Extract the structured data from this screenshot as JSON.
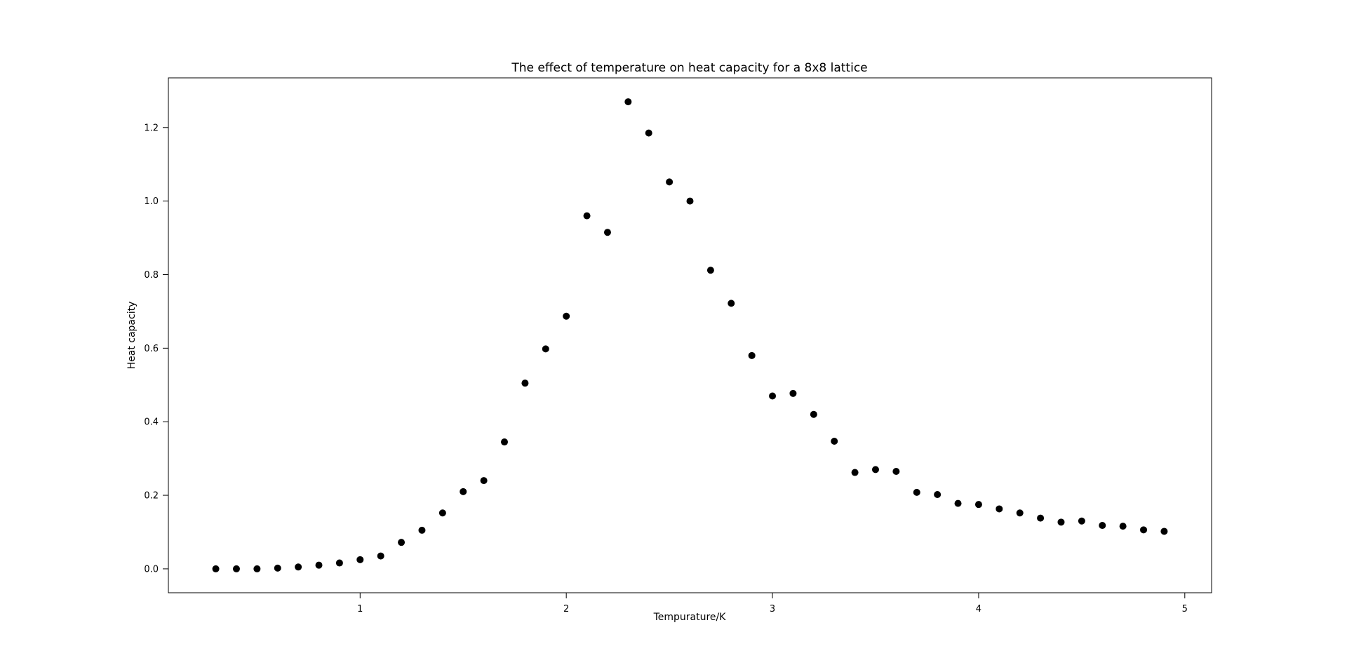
{
  "chart_data": {
    "type": "scatter",
    "title": "The effect of temperature on heat capacity for a 8x8 lattice",
    "xlabel": "Tempurature/K",
    "ylabel": "Heat capacity",
    "x": [
      0.3,
      0.4,
      0.5,
      0.6,
      0.7,
      0.8,
      0.9,
      1.0,
      1.1,
      1.2,
      1.3,
      1.4,
      1.5,
      1.6,
      1.7,
      1.8,
      1.9,
      2.0,
      2.1,
      2.2,
      2.3,
      2.4,
      2.5,
      2.6,
      2.7,
      2.8,
      2.9,
      3.0,
      3.1,
      3.2,
      3.3,
      3.4,
      3.5,
      3.6,
      3.7,
      3.8,
      3.9,
      4.0,
      4.1,
      4.2,
      4.3,
      4.4,
      4.5,
      4.6,
      4.7,
      4.8,
      4.9
    ],
    "y": [
      0.0,
      0.0,
      0.0,
      0.002,
      0.005,
      0.01,
      0.016,
      0.025,
      0.035,
      0.072,
      0.105,
      0.152,
      0.21,
      0.24,
      0.345,
      0.505,
      0.598,
      0.687,
      0.96,
      0.915,
      1.27,
      1.185,
      1.052,
      1.0,
      0.812,
      0.722,
      0.58,
      0.47,
      0.477,
      0.42,
      0.347,
      0.262,
      0.27,
      0.265,
      0.208,
      0.202,
      0.178,
      0.175,
      0.163,
      0.152,
      0.138,
      0.127,
      0.13,
      0.118,
      0.116,
      0.106,
      0.102
    ],
    "xlim": [
      0.07,
      5.13
    ],
    "ylim": [
      -0.065,
      1.335
    ],
    "xticks": [
      {
        "value": 1,
        "label": "1"
      },
      {
        "value": 2,
        "label": "2"
      },
      {
        "value": 3,
        "label": "3"
      },
      {
        "value": 4,
        "label": "4"
      },
      {
        "value": 5,
        "label": "5"
      }
    ],
    "yticks": [
      {
        "value": 0.0,
        "label": "0.0"
      },
      {
        "value": 0.2,
        "label": "0.2"
      },
      {
        "value": 0.4,
        "label": "0.4"
      },
      {
        "value": 0.6,
        "label": "0.6"
      },
      {
        "value": 0.8,
        "label": "0.8"
      },
      {
        "value": 1.0,
        "label": "1.0"
      },
      {
        "value": 1.2,
        "label": "1.2"
      }
    ],
    "marker_color": "#000000",
    "marker_radius": 5,
    "grid": false,
    "background_color": "#ffffff",
    "spine_color": "#000000"
  }
}
